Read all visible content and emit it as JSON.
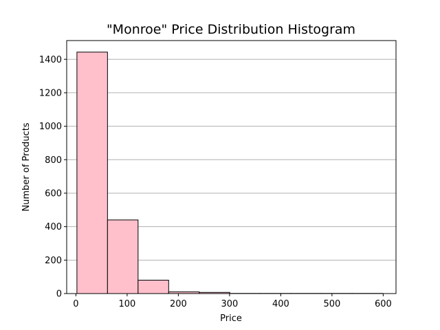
{
  "chart_data": {
    "type": "bar",
    "title": "\"Monroe\" Price Distribution Histogram",
    "xlabel": "Price",
    "ylabel": "Number of Products",
    "xlim": [
      -18,
      625
    ],
    "ylim": [
      0,
      1512
    ],
    "xticks": [
      0,
      100,
      200,
      300,
      400,
      500,
      600
    ],
    "yticks": [
      0,
      200,
      400,
      600,
      800,
      1000,
      1200,
      1400
    ],
    "grid": "y",
    "bin_edges": [
      2,
      61.7,
      121.4,
      181.1,
      240.8,
      300.5,
      360.2,
      419.9,
      479.6,
      539.3,
      599
    ],
    "values": [
      1443,
      440,
      80,
      10,
      7,
      1,
      1,
      1,
      1,
      1
    ],
    "colors": {
      "bar_fill": "#ffc0cb",
      "bar_edge": "#000000",
      "grid": "#b0b0b0"
    }
  }
}
